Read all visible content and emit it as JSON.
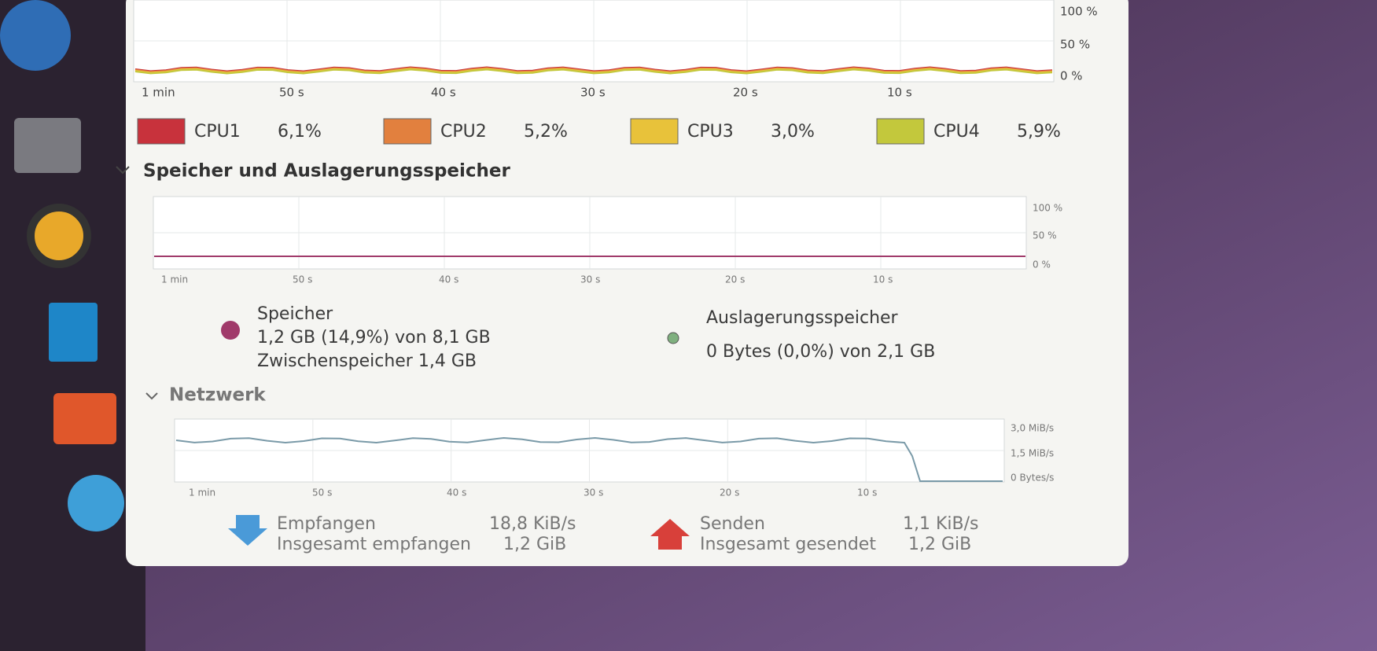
{
  "cpu": {
    "graph": {
      "x_labels": [
        "1 min",
        "50 s",
        "40 s",
        "30 s",
        "20 s",
        "10 s"
      ],
      "y_labels": [
        "100 %",
        "50 %",
        "0 %"
      ]
    },
    "legend": [
      {
        "name": "CPU1",
        "value": "6,1%",
        "color": "#c8323c"
      },
      {
        "name": "CPU2",
        "value": "5,2%",
        "color": "#e2803e"
      },
      {
        "name": "CPU3",
        "value": "3,0%",
        "color": "#e8c23a"
      },
      {
        "name": "CPU4",
        "value": "5,9%",
        "color": "#c3c83c"
      }
    ]
  },
  "memory": {
    "title": "Speicher und Auslagerungsspeicher",
    "graph": {
      "x_labels": [
        "1 min",
        "50 s",
        "40 s",
        "30 s",
        "20 s",
        "10 s"
      ],
      "y_labels": [
        "100 %",
        "50 %",
        "0 %"
      ]
    },
    "memory": {
      "label": "Speicher",
      "usage": "1,2 GB (14,9%) von 8,1 GB",
      "cache": "Zwischenspeicher 1,4 GB"
    },
    "swap": {
      "label": "Auslagerungsspeicher",
      "usage": "0 Bytes (0,0%) von 2,1 GB"
    }
  },
  "network": {
    "title": "Netzwerk",
    "graph": {
      "x_labels": [
        "1 min",
        "50 s",
        "40 s",
        "30 s",
        "20 s",
        "10 s"
      ],
      "y_labels": [
        "3,0 MiB/s",
        "1,5 MiB/s",
        "0 Bytes/s"
      ]
    },
    "received": {
      "label": "Empfangen",
      "rate": "18,8 KiB/s",
      "total_label": "Insgesamt empfangen",
      "total": "1,2 GiB"
    },
    "sent": {
      "label": "Senden",
      "rate": "1,1 KiB/s",
      "total_label": "Insgesamt gesendet",
      "total": "1,2 GiB"
    }
  }
}
